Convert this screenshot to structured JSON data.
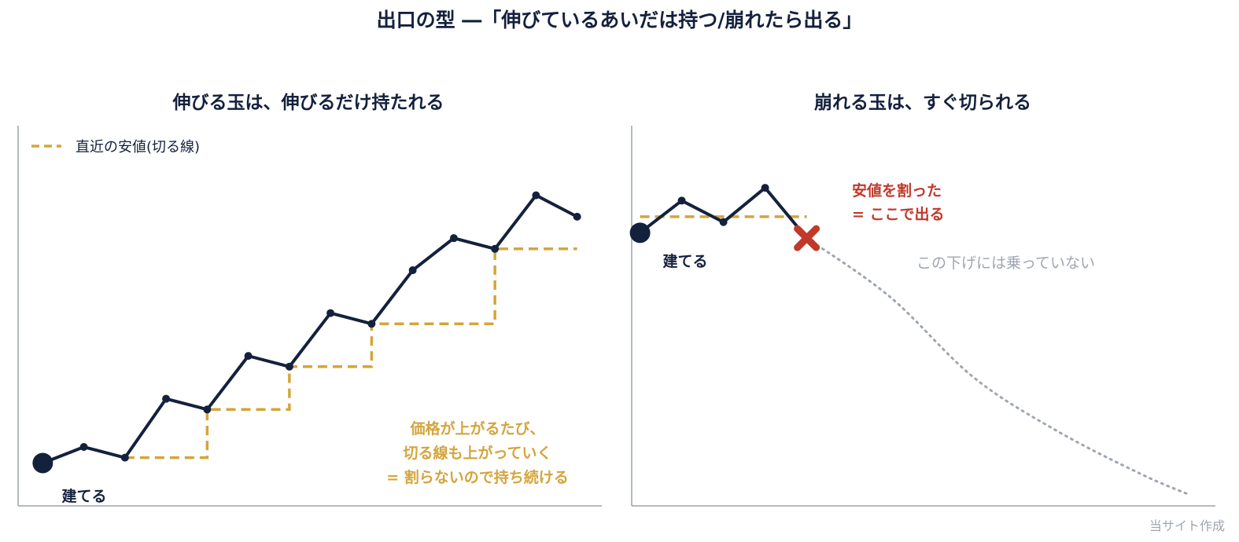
{
  "title": "出口の型 ―「伸びているあいだは持つ/崩れたら出る」",
  "footer": "当サイト作成",
  "colors": {
    "price": "#14213d",
    "stop": "#d4a53c",
    "exit": "#c0392b",
    "ghost": "#a0a6b0",
    "axis": "#9aa3ad"
  },
  "chart_data": [
    {
      "type": "line",
      "title": "伸びる玉は、伸びるだけ持たれる",
      "legend": {
        "label": "直近の安値(切る線)",
        "position": "top-left"
      },
      "series": [
        {
          "name": "price",
          "x": [
            0,
            1,
            2,
            3,
            4,
            5,
            6,
            7,
            8,
            9,
            10,
            11,
            12,
            13
          ],
          "y": [
            6.5,
            8.0,
            7.0,
            12.5,
            11.5,
            16.5,
            15.5,
            20.5,
            19.5,
            24.5,
            27.5,
            26.5,
            31.5,
            29.5
          ]
        },
        {
          "name": "直近の安値(切る線)",
          "x": [
            2,
            4,
            4,
            6,
            6,
            8,
            8,
            11,
            11,
            13
          ],
          "y": [
            7.0,
            7.0,
            11.5,
            11.5,
            15.5,
            15.5,
            19.5,
            19.5,
            26.5,
            26.5
          ]
        }
      ],
      "annotations": {
        "entry": "建てる",
        "note_lines": [
          "価格が上がるたび、",
          "切る線も上がっていく",
          "= 割らないので持ち続ける"
        ]
      },
      "xlim": [
        -0.6,
        13.6
      ],
      "ylim": [
        2.5,
        38
      ]
    },
    {
      "type": "line",
      "title": "崩れる玉は、すぐ切られる",
      "series": [
        {
          "name": "price",
          "x": [
            0,
            1,
            2,
            3,
            4
          ],
          "y": [
            28,
            31,
            29,
            32.2,
            27.5
          ]
        },
        {
          "name": "直近の安値(切る線)",
          "x": [
            0,
            4
          ],
          "y": [
            29.5,
            29.5
          ]
        },
        {
          "name": "after-exit",
          "x": [
            4,
            6,
            8,
            10,
            12,
            13.2
          ],
          "y": [
            27.5,
            22,
            14.5,
            9.5,
            5.5,
            3.5
          ]
        }
      ],
      "annotations": {
        "entry": "建てる",
        "exit_lines": [
          "安値を割った",
          "= ここで出る"
        ],
        "ghost": "この下げには乗っていない"
      },
      "xlim": [
        -0.2,
        13.8
      ],
      "ylim": [
        2.5,
        38
      ]
    }
  ]
}
